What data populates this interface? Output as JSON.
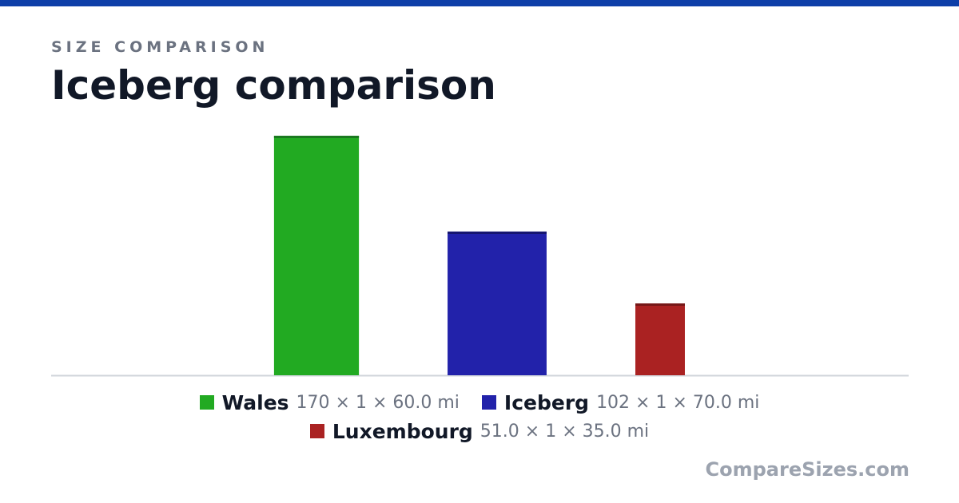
{
  "theme": {
    "accent": "#0e3fa8"
  },
  "header": {
    "eyebrow": "SIZE COMPARISON",
    "title": "Iceberg comparison"
  },
  "chart_data": {
    "type": "bar",
    "categories": [
      "Wales",
      "Iceberg",
      "Luxembourg"
    ],
    "values": [
      170,
      102,
      51
    ],
    "widths": [
      60,
      70,
      35
    ],
    "colors": [
      "#22aa22",
      "#2222aa",
      "#aa2222"
    ],
    "cap_colors": [
      "#1a7a1f",
      "#161670",
      "#761818"
    ],
    "ylim": [
      0,
      170
    ],
    "grid": false,
    "legend": "bottom"
  },
  "legend": {
    "items": [
      {
        "name": "Wales",
        "dims": "170 × 1 × 60.0 mi",
        "color": "#22aa22"
      },
      {
        "name": "Iceberg",
        "dims": "102 × 1 × 70.0 mi",
        "color": "#2222aa"
      },
      {
        "name": "Luxembourg",
        "dims": "51.0 × 1 × 35.0 mi",
        "color": "#aa2222"
      }
    ]
  },
  "watermark": "CompareSizes.com"
}
